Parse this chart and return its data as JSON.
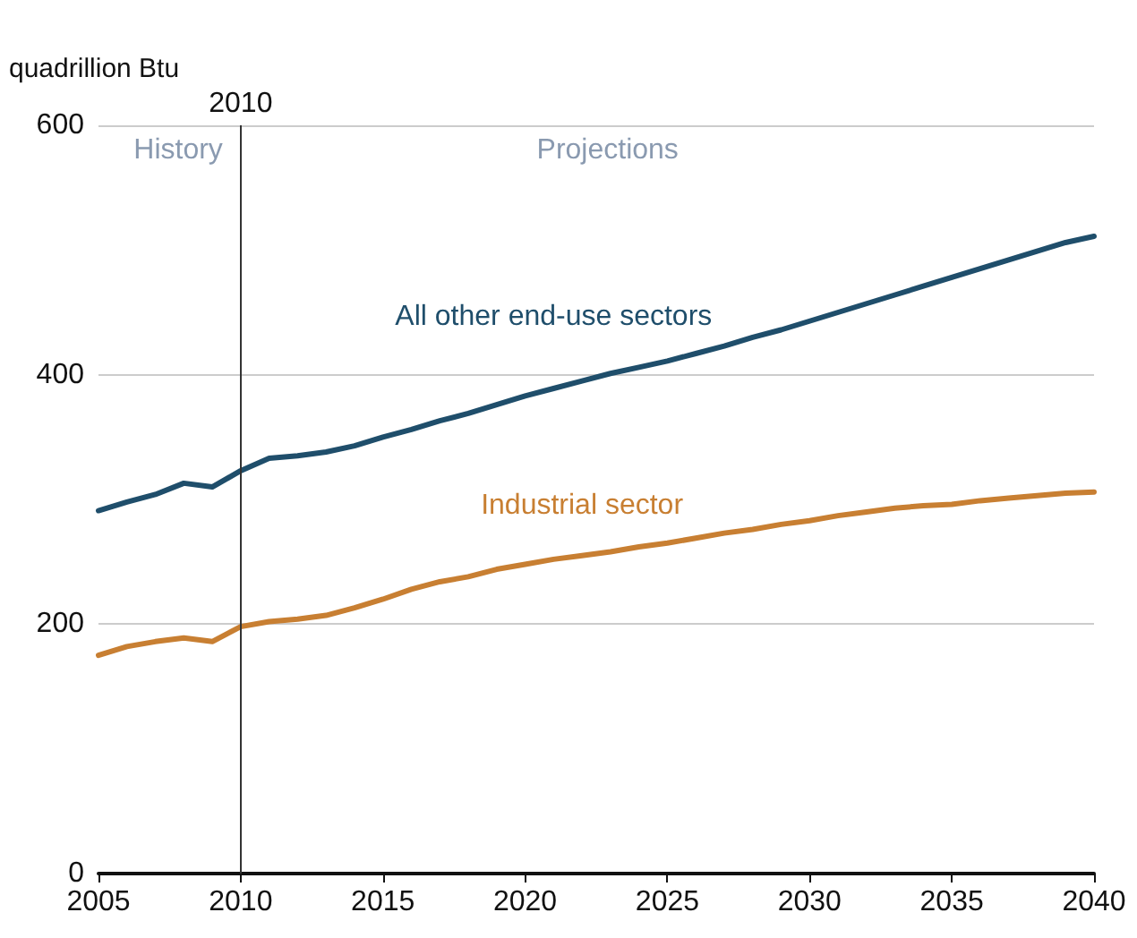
{
  "chart_data": {
    "type": "line",
    "ylabel": "quadrillion Btu",
    "x": [
      2005,
      2006,
      2007,
      2008,
      2009,
      2010,
      2011,
      2012,
      2013,
      2014,
      2015,
      2016,
      2017,
      2018,
      2019,
      2020,
      2021,
      2022,
      2023,
      2024,
      2025,
      2026,
      2027,
      2028,
      2029,
      2030,
      2031,
      2032,
      2033,
      2034,
      2035,
      2036,
      2037,
      2038,
      2039,
      2040
    ],
    "series": [
      {
        "name": "All other end-use sectors",
        "color": "#1f4e6b",
        "values": [
          291,
          298,
          304,
          313,
          310,
          323,
          333,
          335,
          338,
          343,
          350,
          356,
          363,
          369,
          376,
          383,
          389,
          395,
          401,
          406,
          411,
          417,
          423,
          430,
          436,
          443,
          450,
          457,
          464,
          471,
          478,
          485,
          492,
          499,
          506,
          511
        ]
      },
      {
        "name": "Industrial sector",
        "color": "#c87f32",
        "values": [
          175,
          182,
          186,
          189,
          186,
          198,
          202,
          204,
          207,
          213,
          220,
          228,
          234,
          238,
          244,
          248,
          252,
          255,
          258,
          262,
          265,
          269,
          273,
          276,
          280,
          283,
          287,
          290,
          293,
          295,
          296,
          299,
          301,
          303,
          305,
          306
        ]
      }
    ],
    "xlim": [
      2005,
      2040
    ],
    "xticks": [
      2005,
      2010,
      2015,
      2020,
      2025,
      2030,
      2035,
      2040
    ],
    "ylim": [
      0,
      600
    ],
    "yticks": [
      0,
      200,
      400,
      600
    ],
    "grid": "y",
    "legend": false,
    "line_style": "solid",
    "marker": "none",
    "ref_lines": [
      {
        "axis": "x",
        "value": 2010,
        "label": "2010",
        "color": "#333333"
      }
    ],
    "annotations": [
      "History",
      "Projections"
    ]
  }
}
